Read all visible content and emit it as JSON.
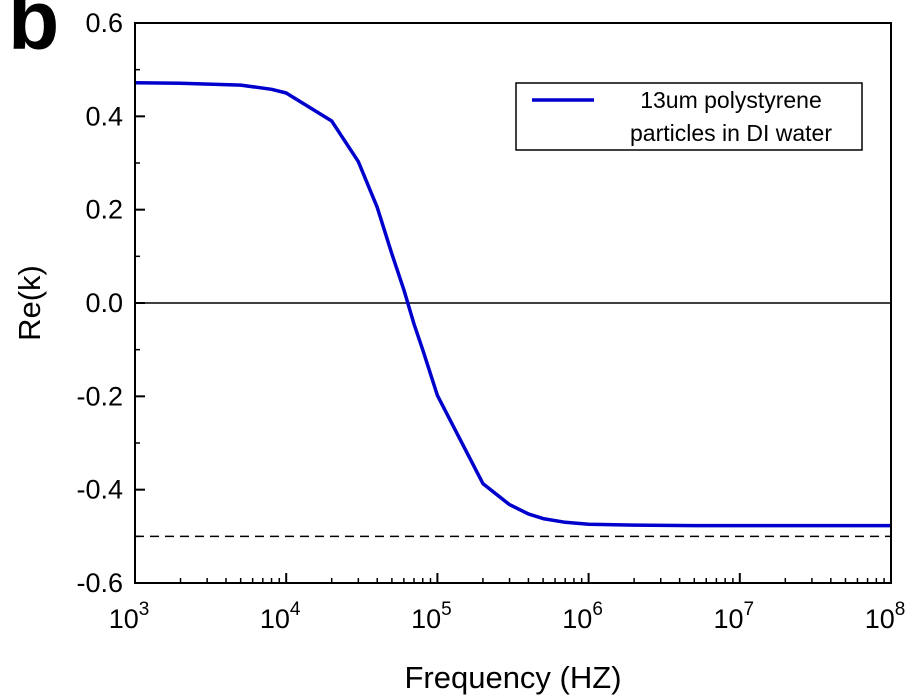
{
  "figure": {
    "panel_label": "b"
  },
  "chart_data": {
    "type": "line",
    "title": "",
    "xlabel": "Frequency (HZ)",
    "ylabel": "Re(k)",
    "xscale": "log",
    "xlim": [
      1000,
      100000000
    ],
    "ylim": [
      -0.6,
      0.6
    ],
    "x_ticks": [
      1000,
      10000,
      100000,
      1000000,
      10000000,
      100000000
    ],
    "x_tick_labels": [
      {
        "base": "10",
        "exp": "3"
      },
      {
        "base": "10",
        "exp": "4"
      },
      {
        "base": "10",
        "exp": "5"
      },
      {
        "base": "10",
        "exp": "6"
      },
      {
        "base": "10",
        "exp": "7"
      },
      {
        "base": "10",
        "exp": "8"
      }
    ],
    "y_ticks": [
      -0.6,
      -0.4,
      -0.2,
      0.0,
      0.2,
      0.4,
      0.6
    ],
    "y_tick_labels": [
      "-0.6",
      "-0.4",
      "-0.2",
      "0.0",
      "0.2",
      "0.4",
      "0.6"
    ],
    "grid": false,
    "legend_position": "top-right",
    "series": [
      {
        "name_lines": [
          "13um polystyrene",
          "particles in DI water"
        ],
        "color": "#0000cc",
        "x": [
          1000,
          2000,
          5000,
          8000,
          10000,
          20000,
          30000,
          40000,
          50000,
          60000,
          70000,
          80000,
          100000,
          200000,
          300000,
          400000,
          500000,
          700000,
          1000000,
          2000000,
          5000000,
          10000000,
          100000000
        ],
        "y": [
          0.472,
          0.471,
          0.467,
          0.458,
          0.45,
          0.39,
          0.303,
          0.205,
          0.105,
          0.028,
          -0.045,
          -0.1,
          -0.198,
          -0.387,
          -0.432,
          -0.452,
          -0.462,
          -0.47,
          -0.474,
          -0.476,
          -0.477,
          -0.477,
          -0.477
        ]
      }
    ],
    "reference_lines": [
      {
        "y": 0.0,
        "style": "solid",
        "color": "#000000"
      },
      {
        "y": -0.5,
        "style": "dashed",
        "color": "#000000"
      }
    ]
  }
}
